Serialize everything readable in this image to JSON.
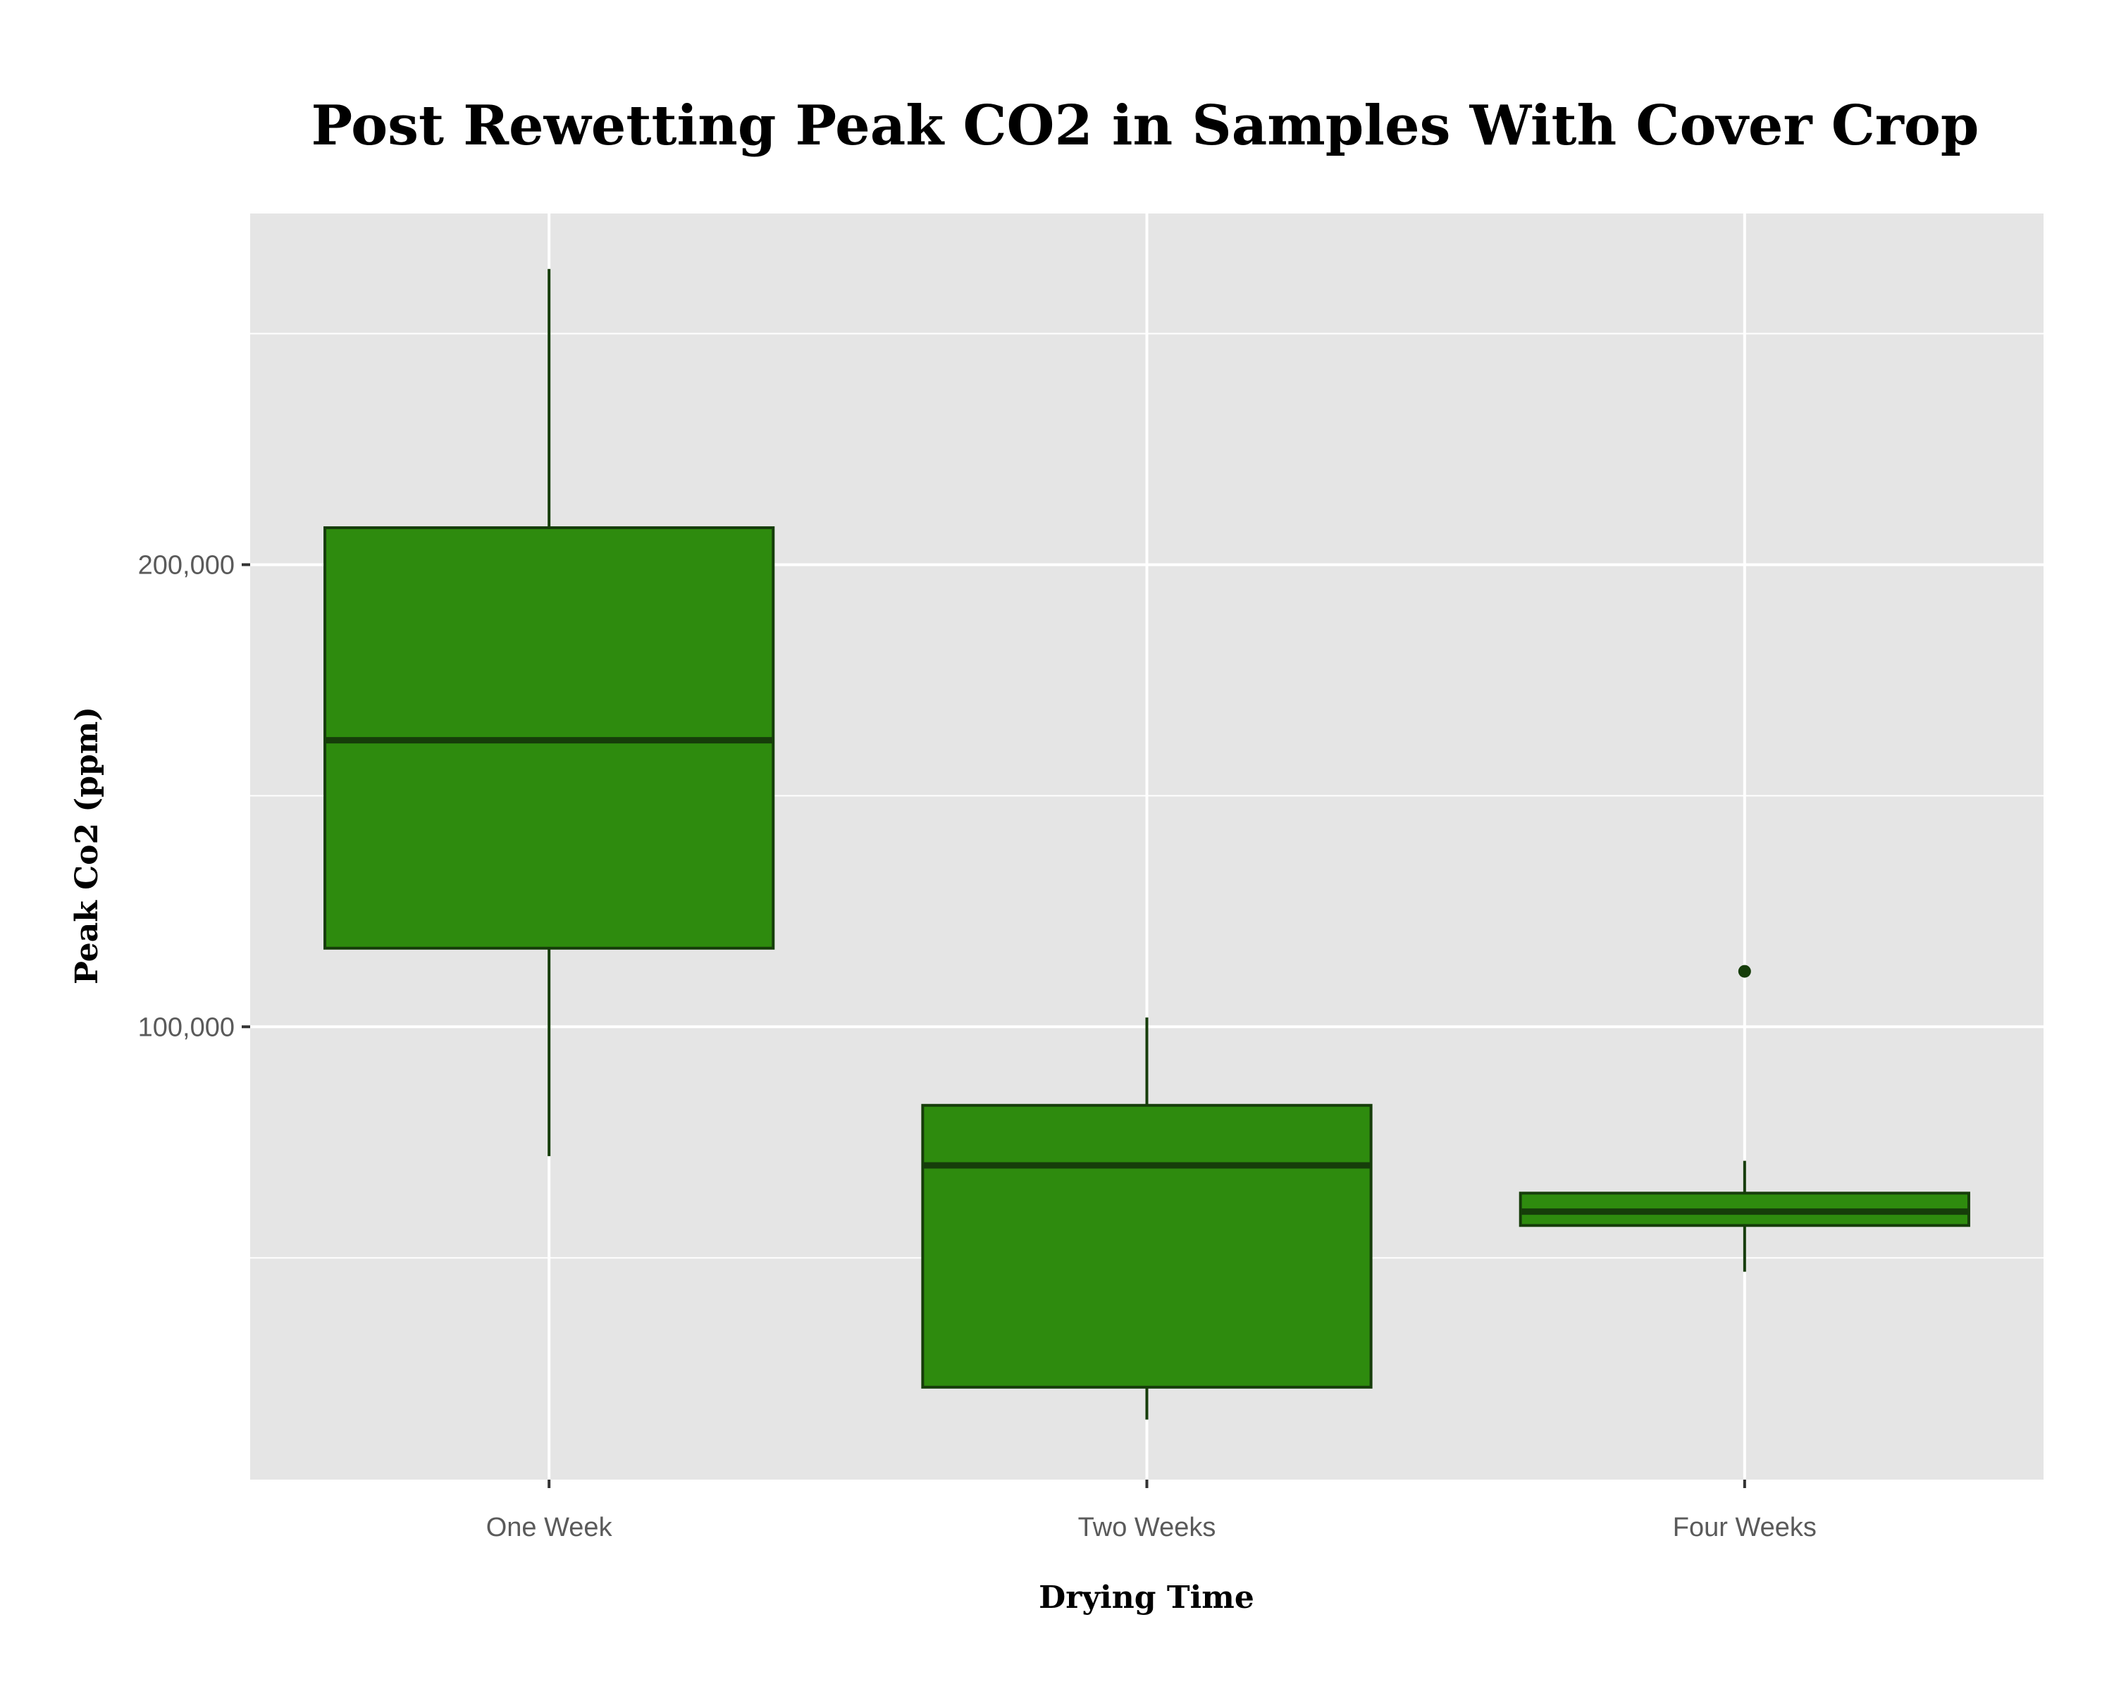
{
  "chart_data": {
    "type": "box",
    "title": "Post Rewetting Peak CO2 in Samples With Cover Crop",
    "xlabel": "Drying Time",
    "ylabel": "Peak Co2 (ppm)",
    "categories": [
      "One Week",
      "Two Weeks",
      "Four Weeks"
    ],
    "ylim": [
      2000,
      276000
    ],
    "yticks": [
      100000,
      200000
    ],
    "ytick_labels": [
      "100,000",
      "200,000"
    ],
    "grid": true,
    "boxes": [
      {
        "category": "One Week",
        "min": 72000,
        "q1": 117000,
        "median": 162000,
        "q3": 208000,
        "max": 264000,
        "outliers": []
      },
      {
        "category": "Two Weeks",
        "min": 15000,
        "q1": 22000,
        "median": 70000,
        "q3": 83000,
        "max": 102000,
        "outliers": []
      },
      {
        "category": "Four Weeks",
        "min": 47000,
        "q1": 57000,
        "median": 60000,
        "q3": 64000,
        "max": 71000,
        "outliers": [
          112000
        ]
      }
    ],
    "colors": {
      "fill": "#2e8b0e",
      "stroke": "#163d0a",
      "panel": "#e5e5e5",
      "grid": "#ffffff"
    }
  }
}
